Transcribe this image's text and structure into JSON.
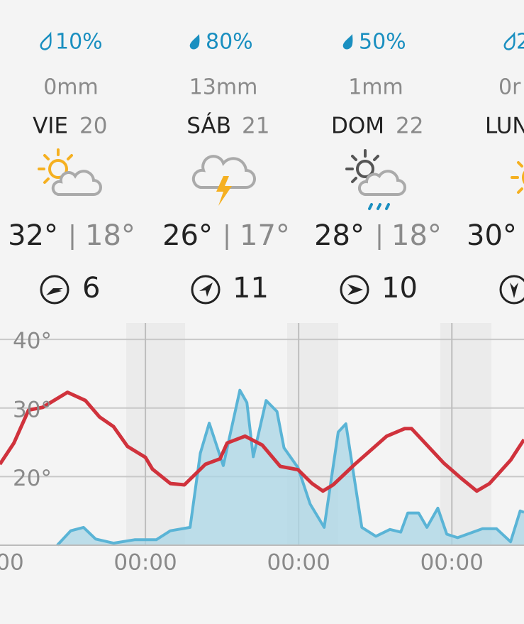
{
  "days": [
    {
      "precip_prob": "10%",
      "precip_amount": "0mm",
      "day": "VIE",
      "date": "20",
      "max": "32°",
      "min": "18°",
      "wind": "6"
    },
    {
      "precip_prob": "80%",
      "precip_amount": "13mm",
      "day": "SÁB",
      "date": "21",
      "max": "26°",
      "min": "17°",
      "wind": "11"
    },
    {
      "precip_prob": "50%",
      "precip_amount": "1mm",
      "day": "DOM",
      "date": "22",
      "max": "28°",
      "min": "18°",
      "wind": "10"
    },
    {
      "precip_prob": "2",
      "precip_amount": "0r",
      "day": "LUN",
      "max": "30°"
    }
  ],
  "chart_data": {
    "type": "line",
    "xlim": [
      0,
      83.3
    ],
    "xticks": [
      {
        "value": 0,
        "label": "00:00"
      },
      {
        "value": 24,
        "label": "00:00"
      },
      {
        "value": 48,
        "label": "00:00"
      },
      {
        "value": 72,
        "label": "00:00"
      }
    ],
    "ylim": [
      10,
      42.4
    ],
    "yticks": [
      {
        "value": 20,
        "label": "20°"
      },
      {
        "value": 30,
        "label": "30°"
      },
      {
        "value": 40,
        "label": "40°"
      }
    ],
    "grid": true,
    "series": [
      {
        "style": "area",
        "color": "#5ab4d6",
        "x": [
          10.2,
          12.3,
          14.3,
          16.2,
          19,
          22.3,
          25.7,
          27.9,
          31,
          32.6,
          34,
          36.2,
          38.8,
          39.9,
          40.9,
          42.9,
          44.6,
          45.7,
          47.9,
          49.8,
          52,
          54.2,
          55.4,
          57.9,
          60.1,
          62.3,
          64,
          65.1,
          66.8,
          68.1,
          69.8,
          71.2,
          72.9,
          76.8,
          79,
          81.2,
          82.7,
          83.3
        ],
        "values": [
          10,
          12.1,
          12.6,
          10.9,
          10.3,
          10.8,
          10.8,
          12.1,
          12.6,
          23.4,
          27.8,
          21.6,
          32.6,
          30.8,
          22.9,
          31.1,
          29.5,
          24.2,
          21.3,
          16,
          12.6,
          26.5,
          27.7,
          12.6,
          11.3,
          12.3,
          11.9,
          14.7,
          14.7,
          12.6,
          15.4,
          11.6,
          11.1,
          12.4,
          12.4,
          10.5,
          15,
          14.8
        ]
      },
      {
        "style": "line",
        "color": "#d0323c",
        "x": [
          1.2,
          3.4,
          5.7,
          7.9,
          11.8,
          14.6,
          16.8,
          19,
          21.2,
          24,
          25.1,
          27.9,
          30.1,
          33.4,
          35.7,
          36.8,
          39.6,
          42.3,
          45.1,
          47.9,
          50.1,
          51.8,
          53.4,
          56.8,
          61.8,
          64.6,
          65.7,
          70.7,
          73.4,
          75.9,
          77.9,
          81.2,
          83.3
        ],
        "values": [
          21.8,
          24.9,
          29.7,
          30.1,
          32.3,
          31.1,
          28.7,
          27.3,
          24.4,
          22.8,
          21.1,
          19,
          18.8,
          21.8,
          22.6,
          24.9,
          25.9,
          24.6,
          21.5,
          21,
          19,
          17.9,
          18.8,
          21.8,
          25.9,
          27,
          27,
          22,
          19.8,
          17.9,
          19,
          22.4,
          25.4
        ]
      }
    ]
  }
}
